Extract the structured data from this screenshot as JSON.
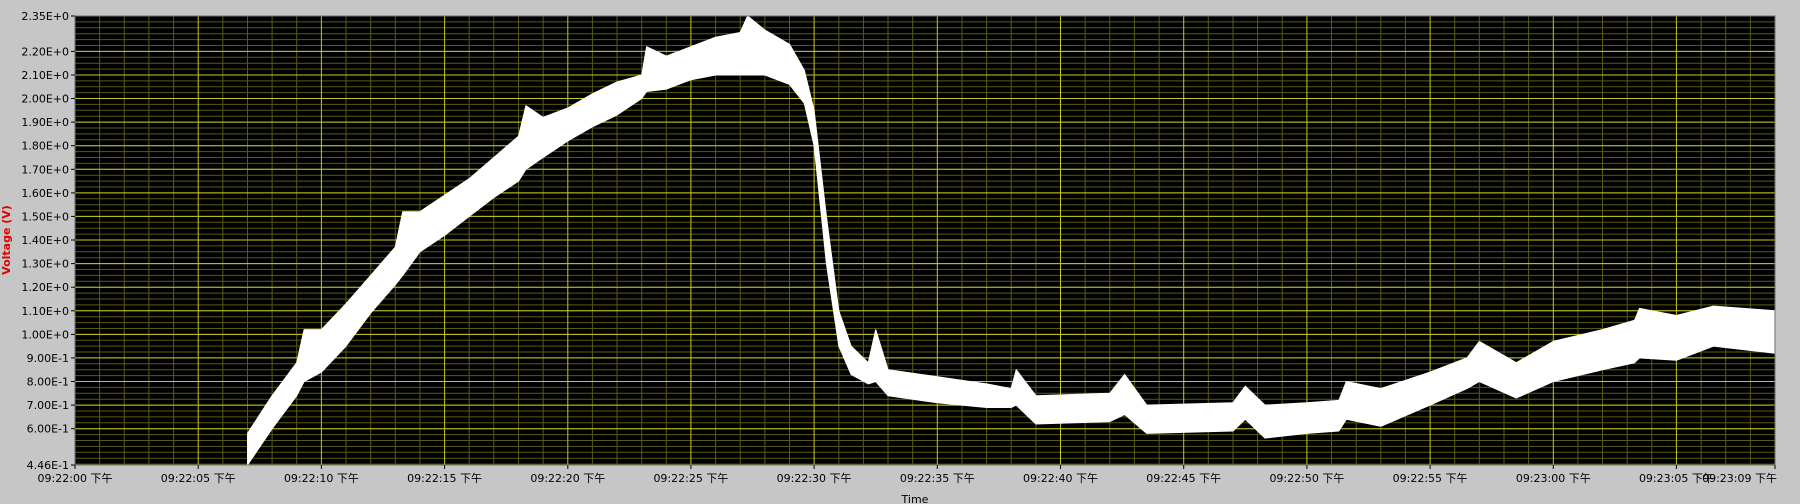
{
  "chart_data": {
    "type": "area",
    "title": "",
    "xlabel": "Time",
    "ylabel": "Voltage (V)",
    "y_min_label": "4.46E-1",
    "ylim": [
      0.446,
      2.35
    ],
    "xlim": [
      "09:22:00 下午",
      "09:23:09 下午"
    ],
    "xlim_seconds": [
      0,
      69
    ],
    "grid": true,
    "legend": "none",
    "colors": {
      "plot_background": "#000000",
      "grid_major": "#c8c81e",
      "grid_minor": "#5a5a14",
      "trace": "#ffffff",
      "ylabel": "#e00000"
    },
    "y_ticks": [
      {
        "value": 2.35,
        "label": "2.35E+0"
      },
      {
        "value": 2.2,
        "label": "2.20E+0"
      },
      {
        "value": 2.1,
        "label": "2.10E+0"
      },
      {
        "value": 2.0,
        "label": "2.00E+0"
      },
      {
        "value": 1.9,
        "label": "1.90E+0"
      },
      {
        "value": 1.8,
        "label": "1.80E+0"
      },
      {
        "value": 1.7,
        "label": "1.70E+0"
      },
      {
        "value": 1.6,
        "label": "1.60E+0"
      },
      {
        "value": 1.5,
        "label": "1.50E+0"
      },
      {
        "value": 1.4,
        "label": "1.40E+0"
      },
      {
        "value": 1.3,
        "label": "1.30E+0"
      },
      {
        "value": 1.2,
        "label": "1.20E+0"
      },
      {
        "value": 1.1,
        "label": "1.10E+0"
      },
      {
        "value": 1.0,
        "label": "1.00E+0"
      },
      {
        "value": 0.9,
        "label": "9.00E-1"
      },
      {
        "value": 0.8,
        "label": "8.00E-1"
      },
      {
        "value": 0.7,
        "label": "7.00E-1"
      },
      {
        "value": 0.6,
        "label": "6.00E-1"
      },
      {
        "value": 0.446,
        "label": "4.46E-1"
      }
    ],
    "x_ticks": [
      {
        "t": 0,
        "label": "09:22:00 下午"
      },
      {
        "t": 5,
        "label": "09:22:05 下午"
      },
      {
        "t": 10,
        "label": "09:22:10 下午"
      },
      {
        "t": 15,
        "label": "09:22:15 下午"
      },
      {
        "t": 20,
        "label": "09:22:20 下午"
      },
      {
        "t": 25,
        "label": "09:22:25 下午"
      },
      {
        "t": 30,
        "label": "09:22:30 下午"
      },
      {
        "t": 35,
        "label": "09:22:35 下午"
      },
      {
        "t": 40,
        "label": "09:22:40 下午"
      },
      {
        "t": 45,
        "label": "09:22:45 下午"
      },
      {
        "t": 50,
        "label": "09:22:50 下午"
      },
      {
        "t": 55,
        "label": "09:22:55 下午"
      },
      {
        "t": 60,
        "label": "09:23:00 下午"
      },
      {
        "t": 65,
        "label": "09:23:05 下午"
      },
      {
        "t": 69,
        "label": "09:23:09 下午"
      }
    ],
    "series": [
      {
        "points": [
          {
            "t": 7.0,
            "hi": 0.58,
            "lo": 0.446
          },
          {
            "t": 8.0,
            "hi": 0.74,
            "lo": 0.6
          },
          {
            "t": 9.0,
            "hi": 0.88,
            "lo": 0.74
          },
          {
            "t": 9.3,
            "hi": 1.02,
            "lo": 0.8
          },
          {
            "t": 10.0,
            "hi": 1.02,
            "lo": 0.84
          },
          {
            "t": 11.0,
            "hi": 1.13,
            "lo": 0.95
          },
          {
            "t": 12.0,
            "hi": 1.25,
            "lo": 1.09
          },
          {
            "t": 13.0,
            "hi": 1.37,
            "lo": 1.21
          },
          {
            "t": 13.3,
            "hi": 1.52,
            "lo": 1.25
          },
          {
            "t": 14.0,
            "hi": 1.52,
            "lo": 1.35
          },
          {
            "t": 15.0,
            "hi": 1.59,
            "lo": 1.42
          },
          {
            "t": 16.0,
            "hi": 1.66,
            "lo": 1.5
          },
          {
            "t": 17.0,
            "hi": 1.75,
            "lo": 1.58
          },
          {
            "t": 18.0,
            "hi": 1.84,
            "lo": 1.65
          },
          {
            "t": 18.3,
            "hi": 1.97,
            "lo": 1.7
          },
          {
            "t": 19.0,
            "hi": 1.92,
            "lo": 1.75
          },
          {
            "t": 20.0,
            "hi": 1.96,
            "lo": 1.82
          },
          {
            "t": 21.0,
            "hi": 2.02,
            "lo": 1.88
          },
          {
            "t": 22.0,
            "hi": 2.07,
            "lo": 1.93
          },
          {
            "t": 23.0,
            "hi": 2.1,
            "lo": 2.0
          },
          {
            "t": 23.2,
            "hi": 2.22,
            "lo": 2.03
          },
          {
            "t": 24.0,
            "hi": 2.18,
            "lo": 2.04
          },
          {
            "t": 25.0,
            "hi": 2.22,
            "lo": 2.08
          },
          {
            "t": 26.0,
            "hi": 2.26,
            "lo": 2.1
          },
          {
            "t": 27.0,
            "hi": 2.28,
            "lo": 2.1
          },
          {
            "t": 27.3,
            "hi": 2.35,
            "lo": 2.1
          },
          {
            "t": 28.0,
            "hi": 2.29,
            "lo": 2.1
          },
          {
            "t": 29.0,
            "hi": 2.23,
            "lo": 2.06
          },
          {
            "t": 29.6,
            "hi": 2.12,
            "lo": 1.98
          },
          {
            "t": 30.0,
            "hi": 1.95,
            "lo": 1.8
          },
          {
            "t": 30.5,
            "hi": 1.5,
            "lo": 1.3
          },
          {
            "t": 31.0,
            "hi": 1.1,
            "lo": 0.95
          },
          {
            "t": 31.5,
            "hi": 0.95,
            "lo": 0.83
          },
          {
            "t": 32.2,
            "hi": 0.88,
            "lo": 0.79
          },
          {
            "t": 32.5,
            "hi": 1.02,
            "lo": 0.8
          },
          {
            "t": 33.0,
            "hi": 0.85,
            "lo": 0.74
          },
          {
            "t": 35.0,
            "hi": 0.82,
            "lo": 0.71
          },
          {
            "t": 37.0,
            "hi": 0.79,
            "lo": 0.69
          },
          {
            "t": 38.0,
            "hi": 0.77,
            "lo": 0.69
          },
          {
            "t": 38.2,
            "hi": 0.85,
            "lo": 0.7
          },
          {
            "t": 39.0,
            "hi": 0.74,
            "lo": 0.62
          },
          {
            "t": 42.0,
            "hi": 0.75,
            "lo": 0.63
          },
          {
            "t": 42.6,
            "hi": 0.83,
            "lo": 0.66
          },
          {
            "t": 43.5,
            "hi": 0.7,
            "lo": 0.58
          },
          {
            "t": 47.0,
            "hi": 0.71,
            "lo": 0.59
          },
          {
            "t": 47.5,
            "hi": 0.78,
            "lo": 0.64
          },
          {
            "t": 48.3,
            "hi": 0.7,
            "lo": 0.56
          },
          {
            "t": 50.0,
            "hi": 0.71,
            "lo": 0.58
          },
          {
            "t": 51.3,
            "hi": 0.72,
            "lo": 0.59
          },
          {
            "t": 51.6,
            "hi": 0.8,
            "lo": 0.64
          },
          {
            "t": 53.0,
            "hi": 0.77,
            "lo": 0.61
          },
          {
            "t": 55.0,
            "hi": 0.84,
            "lo": 0.7
          },
          {
            "t": 56.5,
            "hi": 0.9,
            "lo": 0.77
          },
          {
            "t": 57.0,
            "hi": 0.97,
            "lo": 0.8
          },
          {
            "t": 58.5,
            "hi": 0.88,
            "lo": 0.73
          },
          {
            "t": 60.0,
            "hi": 0.97,
            "lo": 0.8
          },
          {
            "t": 62.0,
            "hi": 1.02,
            "lo": 0.85
          },
          {
            "t": 63.3,
            "hi": 1.06,
            "lo": 0.88
          },
          {
            "t": 63.5,
            "hi": 1.11,
            "lo": 0.9
          },
          {
            "t": 65.0,
            "hi": 1.08,
            "lo": 0.89
          },
          {
            "t": 66.5,
            "hi": 1.12,
            "lo": 0.95
          },
          {
            "t": 69.0,
            "hi": 1.1,
            "lo": 0.92
          }
        ]
      }
    ]
  }
}
